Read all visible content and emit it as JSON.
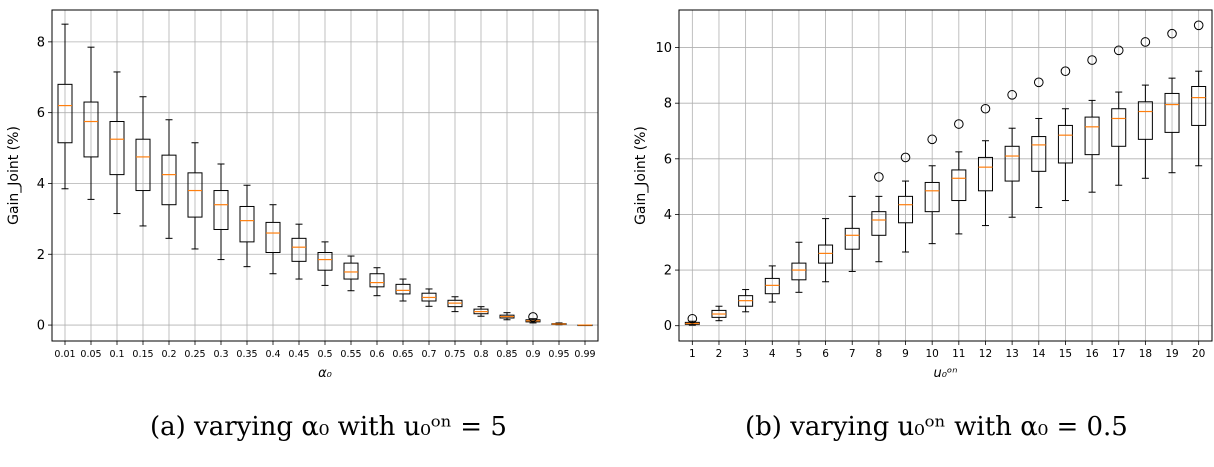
{
  "captions": {
    "a": "(a) varying α₀ with u₀ᵒⁿ = 5",
    "b": "(b) varying u₀ᵒⁿ with α₀ = 0.5"
  },
  "chart_data": [
    {
      "type": "box",
      "xlabel": "α₀",
      "ylabel": "Gain_Joint (%)",
      "ylim": [
        -0.45,
        8.9
      ],
      "yticks": [
        0,
        2,
        4,
        6,
        8
      ],
      "grid": true,
      "categories": [
        "0.01",
        "0.05",
        "0.1",
        "0.15",
        "0.2",
        "0.25",
        "0.3",
        "0.35",
        "0.4",
        "0.45",
        "0.5",
        "0.55",
        "0.6",
        "0.65",
        "0.7",
        "0.75",
        "0.8",
        "0.85",
        "0.9",
        "0.95",
        "0.99"
      ],
      "boxes": [
        {
          "whislo": 3.85,
          "q1": 5.15,
          "med": 6.2,
          "q3": 6.8,
          "whishi": 8.5,
          "fliers": []
        },
        {
          "whislo": 3.55,
          "q1": 4.75,
          "med": 5.75,
          "q3": 6.3,
          "whishi": 7.85,
          "fliers": []
        },
        {
          "whislo": 3.15,
          "q1": 4.25,
          "med": 5.25,
          "q3": 5.75,
          "whishi": 7.15,
          "fliers": []
        },
        {
          "whislo": 2.8,
          "q1": 3.8,
          "med": 4.75,
          "q3": 5.25,
          "whishi": 6.45,
          "fliers": []
        },
        {
          "whislo": 2.45,
          "q1": 3.4,
          "med": 4.25,
          "q3": 4.8,
          "whishi": 5.8,
          "fliers": []
        },
        {
          "whislo": 2.15,
          "q1": 3.05,
          "med": 3.8,
          "q3": 4.3,
          "whishi": 5.15,
          "fliers": []
        },
        {
          "whislo": 1.85,
          "q1": 2.7,
          "med": 3.4,
          "q3": 3.8,
          "whishi": 4.55,
          "fliers": []
        },
        {
          "whislo": 1.65,
          "q1": 2.35,
          "med": 2.95,
          "q3": 3.35,
          "whishi": 3.95,
          "fliers": []
        },
        {
          "whislo": 1.45,
          "q1": 2.05,
          "med": 2.6,
          "q3": 2.9,
          "whishi": 3.4,
          "fliers": []
        },
        {
          "whislo": 1.3,
          "q1": 1.8,
          "med": 2.2,
          "q3": 2.45,
          "whishi": 2.85,
          "fliers": []
        },
        {
          "whislo": 1.12,
          "q1": 1.55,
          "med": 1.85,
          "q3": 2.05,
          "whishi": 2.35,
          "fliers": []
        },
        {
          "whislo": 0.97,
          "q1": 1.3,
          "med": 1.5,
          "q3": 1.75,
          "whishi": 1.95,
          "fliers": []
        },
        {
          "whislo": 0.83,
          "q1": 1.08,
          "med": 1.2,
          "q3": 1.45,
          "whishi": 1.62,
          "fliers": []
        },
        {
          "whislo": 0.68,
          "q1": 0.88,
          "med": 0.98,
          "q3": 1.15,
          "whishi": 1.3,
          "fliers": []
        },
        {
          "whislo": 0.53,
          "q1": 0.68,
          "med": 0.78,
          "q3": 0.9,
          "whishi": 1.02,
          "fliers": []
        },
        {
          "whislo": 0.38,
          "q1": 0.52,
          "med": 0.62,
          "q3": 0.7,
          "whishi": 0.8,
          "fliers": []
        },
        {
          "whislo": 0.25,
          "q1": 0.32,
          "med": 0.38,
          "q3": 0.45,
          "whishi": 0.52,
          "fliers": []
        },
        {
          "whislo": 0.15,
          "q1": 0.2,
          "med": 0.24,
          "q3": 0.28,
          "whishi": 0.35,
          "fliers": []
        },
        {
          "whislo": 0.06,
          "q1": 0.09,
          "med": 0.12,
          "q3": 0.15,
          "whishi": 0.18,
          "fliers": [
            0.23
          ]
        },
        {
          "whislo": 0.01,
          "q1": 0.02,
          "med": 0.03,
          "q3": 0.04,
          "whishi": 0.06,
          "fliers": []
        },
        {
          "whislo": 0.0,
          "q1": 0.0,
          "med": 0.0,
          "q3": 0.0,
          "whishi": 0.0,
          "fliers": []
        }
      ]
    },
    {
      "type": "box",
      "xlabel": "u₀ᵒⁿ",
      "ylabel": "Gain_Joint (%)",
      "ylim": [
        -0.55,
        11.35
      ],
      "yticks": [
        0,
        2,
        4,
        6,
        8,
        10
      ],
      "grid": true,
      "categories": [
        "1",
        "2",
        "3",
        "4",
        "5",
        "6",
        "7",
        "8",
        "9",
        "10",
        "11",
        "12",
        "13",
        "14",
        "15",
        "16",
        "17",
        "18",
        "19",
        "20"
      ],
      "boxes": [
        {
          "whislo": 0.02,
          "q1": 0.05,
          "med": 0.08,
          "q3": 0.12,
          "whishi": 0.16,
          "fliers": [
            0.25
          ]
        },
        {
          "whislo": 0.18,
          "q1": 0.3,
          "med": 0.42,
          "q3": 0.55,
          "whishi": 0.7,
          "fliers": []
        },
        {
          "whislo": 0.5,
          "q1": 0.7,
          "med": 0.9,
          "q3": 1.08,
          "whishi": 1.3,
          "fliers": []
        },
        {
          "whislo": 0.85,
          "q1": 1.15,
          "med": 1.45,
          "q3": 1.7,
          "whishi": 2.15,
          "fliers": []
        },
        {
          "whislo": 1.2,
          "q1": 1.65,
          "med": 2.0,
          "q3": 2.25,
          "whishi": 3.0,
          "fliers": []
        },
        {
          "whislo": 1.58,
          "q1": 2.25,
          "med": 2.6,
          "q3": 2.9,
          "whishi": 3.85,
          "fliers": []
        },
        {
          "whislo": 1.95,
          "q1": 2.75,
          "med": 3.25,
          "q3": 3.5,
          "whishi": 4.65,
          "fliers": []
        },
        {
          "whislo": 2.3,
          "q1": 3.25,
          "med": 3.8,
          "q3": 4.1,
          "whishi": 4.65,
          "fliers": [
            5.35
          ]
        },
        {
          "whislo": 2.65,
          "q1": 3.7,
          "med": 4.35,
          "q3": 4.65,
          "whishi": 5.2,
          "fliers": [
            6.05
          ]
        },
        {
          "whislo": 2.95,
          "q1": 4.1,
          "med": 4.85,
          "q3": 5.15,
          "whishi": 5.75,
          "fliers": [
            6.7
          ]
        },
        {
          "whislo": 3.3,
          "q1": 4.5,
          "med": 5.3,
          "q3": 5.6,
          "whishi": 6.25,
          "fliers": [
            7.25
          ]
        },
        {
          "whislo": 3.6,
          "q1": 4.85,
          "med": 5.7,
          "q3": 6.05,
          "whishi": 6.65,
          "fliers": [
            7.8
          ]
        },
        {
          "whislo": 3.9,
          "q1": 5.2,
          "med": 6.1,
          "q3": 6.45,
          "whishi": 7.1,
          "fliers": [
            8.3
          ]
        },
        {
          "whislo": 4.25,
          "q1": 5.55,
          "med": 6.5,
          "q3": 6.8,
          "whishi": 7.45,
          "fliers": [
            8.75
          ]
        },
        {
          "whislo": 4.5,
          "q1": 5.85,
          "med": 6.85,
          "q3": 7.2,
          "whishi": 7.8,
          "fliers": [
            9.15
          ]
        },
        {
          "whislo": 4.8,
          "q1": 6.15,
          "med": 7.15,
          "q3": 7.5,
          "whishi": 8.1,
          "fliers": [
            9.55
          ]
        },
        {
          "whislo": 5.05,
          "q1": 6.45,
          "med": 7.45,
          "q3": 7.8,
          "whishi": 8.4,
          "fliers": [
            9.9
          ]
        },
        {
          "whislo": 5.3,
          "q1": 6.7,
          "med": 7.7,
          "q3": 8.05,
          "whishi": 8.65,
          "fliers": [
            10.2
          ]
        },
        {
          "whislo": 5.5,
          "q1": 6.95,
          "med": 7.95,
          "q3": 8.35,
          "whishi": 8.9,
          "fliers": [
            10.5
          ]
        },
        {
          "whislo": 5.75,
          "q1": 7.2,
          "med": 8.2,
          "q3": 8.6,
          "whishi": 9.15,
          "fliers": [
            10.8
          ]
        }
      ]
    }
  ],
  "colors": {
    "box": "#000000",
    "median": "#ff7f0e",
    "grid": "#b0b0b0"
  }
}
